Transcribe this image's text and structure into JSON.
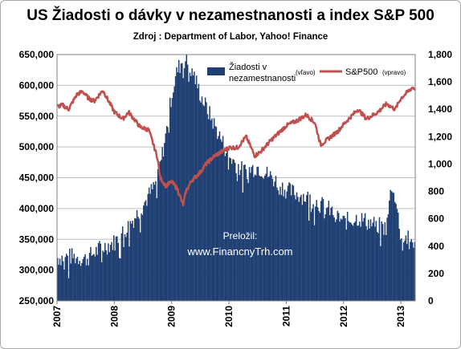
{
  "chart_data": {
    "type": "bar",
    "title": "US Žiadosti o dávky v nezamestnanosti a index S&P 500",
    "subtitle": "Zdroj : Department of Labor, Yahoo! Finance",
    "watermark": [
      "Preložil:",
      "www.FinancnyTrh.com"
    ],
    "x_ticks": [
      "2007",
      "2008",
      "2009",
      "2010",
      "2011",
      "2012",
      "2013"
    ],
    "x_range": [
      2007.0,
      2013.25
    ],
    "y_left": {
      "range": [
        250000,
        650000
      ],
      "ticks": [
        "250,000",
        "300,000",
        "350,000",
        "400,000",
        "450,000",
        "500,000",
        "550,000",
        "600,000",
        "650,000"
      ]
    },
    "y_right": {
      "range": [
        0,
        1800
      ],
      "ticks": [
        "0",
        "200",
        "400",
        "600",
        "800",
        "1,000",
        "1,200",
        "1,400",
        "1,600",
        "1,800"
      ]
    },
    "legend": {
      "claims_label_1": "Žiadosti v",
      "claims_label_2": "nezamestnanosti",
      "claims_side": "(vľavo)",
      "sp500_label": "S&P500",
      "sp500_side": "(vpravo)",
      "placement": "top-right"
    },
    "colors": {
      "claims": "#1f3f73",
      "sp500": "#c0504d"
    },
    "series": [
      {
        "name": "Žiadosti v nezamestnanosti",
        "axis": "left",
        "kind": "bar",
        "x": [
          2007.0,
          2007.25,
          2007.5,
          2007.75,
          2008.0,
          2008.25,
          2008.5,
          2008.75,
          2008.9,
          2009.0,
          2009.1,
          2009.2,
          2009.25,
          2009.35,
          2009.5,
          2009.75,
          2010.0,
          2010.25,
          2010.5,
          2010.75,
          2011.0,
          2011.25,
          2011.5,
          2011.75,
          2012.0,
          2012.25,
          2012.5,
          2012.75,
          2012.85,
          2013.0,
          2013.25
        ],
        "values": [
          320000,
          322000,
          318000,
          335000,
          345000,
          372000,
          405000,
          445000,
          520000,
          585000,
          625000,
          642000,
          640000,
          628000,
          585000,
          535000,
          485000,
          460000,
          468000,
          450000,
          430000,
          422000,
          412000,
          398000,
          378000,
          385000,
          375000,
          368000,
          450000,
          355000,
          345000
        ]
      },
      {
        "name": "S&P500",
        "axis": "right",
        "kind": "line",
        "x": [
          2007.0,
          2007.1,
          2007.2,
          2007.35,
          2007.45,
          2007.55,
          2007.65,
          2007.8,
          2008.0,
          2008.15,
          2008.25,
          2008.45,
          2008.6,
          2008.75,
          2008.8,
          2008.9,
          2009.0,
          2009.1,
          2009.2,
          2009.25,
          2009.35,
          2009.5,
          2009.6,
          2009.75,
          2010.0,
          2010.15,
          2010.3,
          2010.45,
          2010.55,
          2010.75,
          2011.0,
          2011.2,
          2011.35,
          2011.5,
          2011.6,
          2011.75,
          2011.9,
          2012.0,
          2012.25,
          2012.4,
          2012.6,
          2012.75,
          2012.9,
          2013.0,
          2013.1,
          2013.2,
          2013.25
        ],
        "values": [
          1420,
          1430,
          1400,
          1510,
          1530,
          1480,
          1460,
          1540,
          1380,
          1330,
          1380,
          1270,
          1250,
          1050,
          900,
          840,
          870,
          820,
          700,
          800,
          880,
          940,
          1000,
          1060,
          1120,
          1120,
          1200,
          1060,
          1090,
          1180,
          1280,
          1320,
          1360,
          1300,
          1140,
          1190,
          1240,
          1290,
          1400,
          1330,
          1380,
          1440,
          1400,
          1480,
          1520,
          1560,
          1550
        ]
      }
    ]
  }
}
